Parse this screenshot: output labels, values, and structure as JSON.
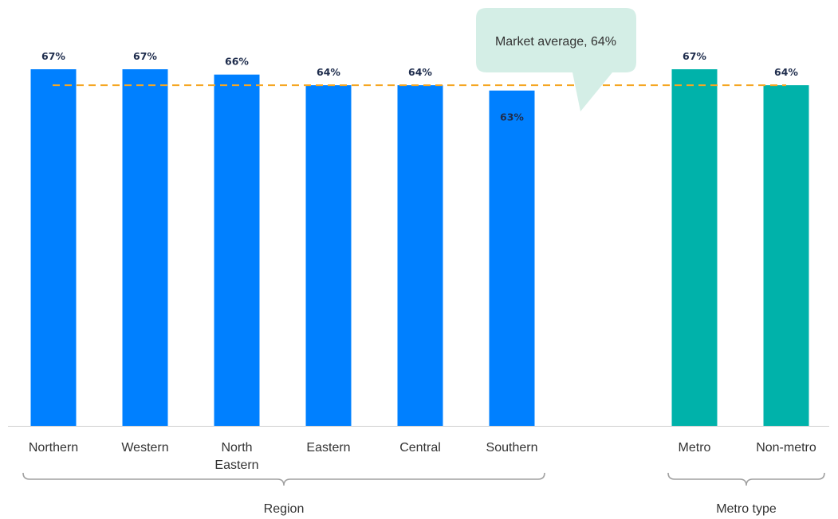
{
  "chart_data": {
    "type": "bar",
    "categories": [
      "Northern",
      "Western",
      "North Eastern",
      "Eastern",
      "Central",
      "Southern",
      "Metro",
      "Non-metro"
    ],
    "category_lines": [
      [
        "Northern"
      ],
      [
        "Western"
      ],
      [
        "North",
        "Eastern"
      ],
      [
        "Eastern"
      ],
      [
        "Central"
      ],
      [
        "Southern"
      ],
      [
        "Metro"
      ],
      [
        "Non-metro"
      ]
    ],
    "values": [
      67,
      67,
      66,
      64,
      64,
      63,
      67,
      64
    ],
    "value_labels": [
      "67%",
      "67%",
      "66%",
      "64%",
      "64%",
      "63%",
      "67%",
      "64%"
    ],
    "groups": [
      {
        "name": "Region",
        "categories": [
          "Northern",
          "Western",
          "North Eastern",
          "Eastern",
          "Central",
          "Southern"
        ]
      },
      {
        "name": "Metro type",
        "categories": [
          "Metro",
          "Non-metro"
        ]
      }
    ],
    "reference_line": {
      "value": 64,
      "label": "Market average, 64%",
      "style": "dashed"
    },
    "title": "",
    "xlabel": "",
    "ylabel": "",
    "grid": false,
    "legend": "none"
  },
  "colors": {
    "region_bar": "#0080ff",
    "metro_bar": "#00b2aa",
    "average_line": "#f5a623",
    "callout_bg": "#d4eee6",
    "value_label": "#1f2d4d",
    "axis": "#cfcfcf",
    "bracket": "#a0a0a0"
  }
}
